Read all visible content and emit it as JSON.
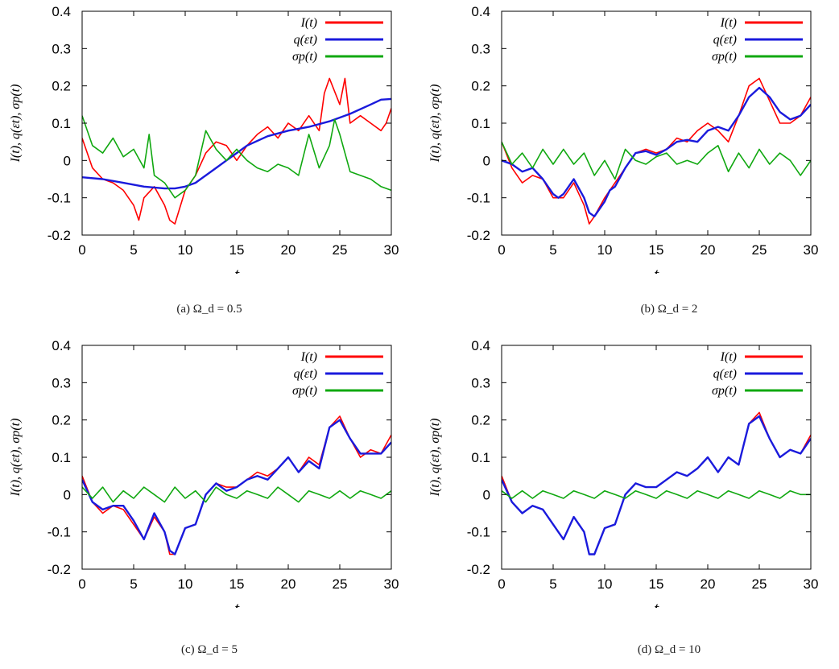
{
  "figure": {
    "panels": [
      {
        "caption": "(a) Ω_d = 0.5"
      },
      {
        "caption": "(b) Ω_d = 2"
      },
      {
        "caption": "(c) Ω_d = 5"
      },
      {
        "caption": "(d) Ω_d = 10"
      }
    ]
  },
  "colors": {
    "I": "#ff0000",
    "q": "#1a1adc",
    "sigma_p": "#10a810"
  },
  "chart_data": [
    {
      "type": "line",
      "caption": "(a) Ω_d = 0.5",
      "xlabel": "t",
      "ylabel": "I(t), q(εt), σp(t)",
      "xlim": [
        0,
        30
      ],
      "ylim": [
        -0.2,
        0.4
      ],
      "xticks": [
        0,
        5,
        10,
        15,
        20,
        25,
        30
      ],
      "yticks": [
        -0.2,
        -0.1,
        0,
        0.1,
        0.2,
        0.3,
        0.4
      ],
      "yticklabels": [
        "-0.2",
        "-0.1",
        "0",
        "0.1",
        "0.2",
        "0.3",
        "0.4"
      ],
      "legend_position": "top-right",
      "series": [
        {
          "name": "I(t)",
          "color": "#ff0000",
          "x": [
            0,
            1,
            2,
            3,
            4,
            5,
            5.5,
            6,
            7,
            8,
            8.5,
            9,
            10,
            11,
            12,
            13,
            14,
            15,
            16,
            17,
            18,
            19,
            20,
            21,
            22,
            23,
            23.5,
            24,
            25,
            25.5,
            26,
            27,
            28,
            29,
            29.5,
            30
          ],
          "y": [
            0.06,
            -0.02,
            -0.05,
            -0.06,
            -0.08,
            -0.12,
            -0.16,
            -0.1,
            -0.07,
            -0.12,
            -0.16,
            -0.17,
            -0.08,
            -0.04,
            0.02,
            0.05,
            0.04,
            0.0,
            0.04,
            0.07,
            0.09,
            0.06,
            0.1,
            0.08,
            0.12,
            0.08,
            0.18,
            0.22,
            0.15,
            0.22,
            0.1,
            0.12,
            0.1,
            0.08,
            0.1,
            0.14
          ]
        },
        {
          "name": "q(εt)",
          "color": "#1a1adc",
          "x": [
            0,
            2,
            4,
            6,
            8,
            9,
            10,
            11,
            12,
            13,
            14,
            15,
            16,
            18,
            20,
            22,
            24,
            26,
            28,
            29,
            30
          ],
          "y": [
            -0.045,
            -0.05,
            -0.06,
            -0.07,
            -0.075,
            -0.075,
            -0.07,
            -0.06,
            -0.04,
            -0.02,
            0.0,
            0.02,
            0.04,
            0.065,
            0.08,
            0.09,
            0.105,
            0.125,
            0.15,
            0.163,
            0.165
          ]
        },
        {
          "name": "σp(t)",
          "color": "#10a810",
          "x": [
            0,
            1,
            2,
            3,
            4,
            5,
            6,
            6.5,
            7,
            8,
            9,
            10,
            11,
            12,
            13,
            14,
            15,
            16,
            17,
            18,
            19,
            20,
            21,
            22,
            23,
            24,
            24.5,
            25,
            26,
            27,
            28,
            29,
            30
          ],
          "y": [
            0.12,
            0.04,
            0.02,
            0.06,
            0.01,
            0.03,
            -0.02,
            0.07,
            -0.04,
            -0.06,
            -0.1,
            -0.08,
            -0.04,
            0.08,
            0.03,
            0.0,
            0.03,
            0.0,
            -0.02,
            -0.03,
            -0.01,
            -0.02,
            -0.04,
            0.07,
            -0.02,
            0.04,
            0.11,
            0.07,
            -0.03,
            -0.04,
            -0.05,
            -0.07,
            -0.08
          ]
        }
      ]
    },
    {
      "type": "line",
      "caption": "(b) Ω_d = 2",
      "xlabel": "t",
      "ylabel": "I(t), q(εt), σp(t)",
      "xlim": [
        0,
        30
      ],
      "ylim": [
        -0.2,
        0.4
      ],
      "xticks": [
        0,
        5,
        10,
        15,
        20,
        25,
        30
      ],
      "yticks": [
        -0.2,
        -0.1,
        0,
        0.1,
        0.2,
        0.3,
        0.4
      ],
      "yticklabels": [
        "-0.2",
        "-0.1",
        "0",
        "0.1",
        "0.2",
        "0.3",
        "0.4"
      ],
      "legend_position": "top-right",
      "series": [
        {
          "name": "I(t)",
          "color": "#ff0000",
          "x": [
            0,
            1,
            2,
            3,
            4,
            5,
            6,
            7,
            8,
            8.5,
            9,
            10,
            11,
            12,
            13,
            14,
            15,
            16,
            17,
            18,
            19,
            20,
            21,
            22,
            23,
            24,
            25,
            26,
            27,
            28,
            29,
            30
          ],
          "y": [
            0.05,
            -0.02,
            -0.06,
            -0.04,
            -0.05,
            -0.1,
            -0.1,
            -0.06,
            -0.12,
            -0.17,
            -0.15,
            -0.1,
            -0.06,
            -0.02,
            0.02,
            0.03,
            0.02,
            0.03,
            0.06,
            0.05,
            0.08,
            0.1,
            0.08,
            0.05,
            0.12,
            0.2,
            0.22,
            0.16,
            0.1,
            0.1,
            0.12,
            0.17
          ]
        },
        {
          "name": "q(εt)",
          "color": "#1a1adc",
          "x": [
            0,
            1,
            2,
            3,
            4,
            5,
            5.5,
            6,
            7,
            8,
            8.5,
            9,
            10,
            10.5,
            11,
            12,
            13,
            14,
            15,
            16,
            17,
            18,
            19,
            20,
            21,
            22,
            23,
            24,
            25,
            26,
            27,
            28,
            29,
            30
          ],
          "y": [
            0.0,
            -0.01,
            -0.03,
            -0.02,
            -0.05,
            -0.09,
            -0.1,
            -0.09,
            -0.05,
            -0.1,
            -0.14,
            -0.15,
            -0.11,
            -0.08,
            -0.07,
            -0.02,
            0.02,
            0.025,
            0.015,
            0.03,
            0.05,
            0.055,
            0.05,
            0.08,
            0.09,
            0.08,
            0.12,
            0.17,
            0.195,
            0.17,
            0.13,
            0.11,
            0.12,
            0.15
          ]
        },
        {
          "name": "σp(t)",
          "color": "#10a810",
          "x": [
            0,
            1,
            2,
            3,
            4,
            5,
            6,
            7,
            8,
            9,
            10,
            11,
            12,
            13,
            14,
            15,
            16,
            17,
            18,
            19,
            20,
            21,
            22,
            23,
            24,
            25,
            26,
            27,
            28,
            29,
            30
          ],
          "y": [
            0.05,
            -0.01,
            0.02,
            -0.02,
            0.03,
            -0.01,
            0.03,
            -0.01,
            0.02,
            -0.04,
            0.0,
            -0.05,
            0.03,
            0.0,
            -0.01,
            0.01,
            0.02,
            -0.01,
            0.0,
            -0.01,
            0.02,
            0.04,
            -0.03,
            0.02,
            -0.02,
            0.03,
            -0.01,
            0.02,
            0.0,
            -0.04,
            0.0
          ]
        }
      ]
    },
    {
      "type": "line",
      "caption": "(c) Ω_d = 5",
      "xlabel": "t",
      "ylabel": "I(t), q(εt), σp(t)",
      "xlim": [
        0,
        30
      ],
      "ylim": [
        -0.2,
        0.4
      ],
      "xticks": [
        0,
        5,
        10,
        15,
        20,
        25,
        30
      ],
      "yticks": [
        -0.2,
        -0.1,
        0,
        0.1,
        0.2,
        0.3,
        0.4
      ],
      "yticklabels": [
        "-0.2",
        "-0.1",
        "0",
        "0.1",
        "0.2",
        "0.3",
        "0.4"
      ],
      "legend_position": "top-right",
      "series": [
        {
          "name": "I(t)",
          "color": "#ff0000",
          "x": [
            0,
            1,
            2,
            3,
            4,
            5,
            6,
            7,
            8,
            8.5,
            9,
            10,
            11,
            12,
            13,
            14,
            15,
            16,
            17,
            18,
            19,
            20,
            21,
            22,
            23,
            24,
            25,
            26,
            27,
            28,
            29,
            30
          ],
          "y": [
            0.05,
            -0.02,
            -0.05,
            -0.03,
            -0.04,
            -0.08,
            -0.12,
            -0.06,
            -0.1,
            -0.16,
            -0.16,
            -0.09,
            -0.08,
            0.0,
            0.03,
            0.02,
            0.02,
            0.04,
            0.06,
            0.05,
            0.07,
            0.1,
            0.06,
            0.1,
            0.08,
            0.18,
            0.21,
            0.15,
            0.1,
            0.12,
            0.11,
            0.16
          ]
        },
        {
          "name": "q(εt)",
          "color": "#1a1adc",
          "x": [
            0,
            1,
            2,
            3,
            4,
            5,
            6,
            7,
            8,
            8.5,
            9,
            10,
            11,
            12,
            13,
            14,
            15,
            16,
            17,
            18,
            19,
            20,
            21,
            22,
            23,
            24,
            25,
            26,
            27,
            28,
            29,
            30
          ],
          "y": [
            0.04,
            -0.02,
            -0.04,
            -0.03,
            -0.03,
            -0.07,
            -0.12,
            -0.05,
            -0.1,
            -0.15,
            -0.16,
            -0.09,
            -0.08,
            0.0,
            0.03,
            0.01,
            0.02,
            0.04,
            0.05,
            0.04,
            0.07,
            0.1,
            0.06,
            0.09,
            0.07,
            0.18,
            0.2,
            0.15,
            0.11,
            0.11,
            0.11,
            0.14
          ]
        },
        {
          "name": "σp(t)",
          "color": "#10a810",
          "x": [
            0,
            1,
            2,
            3,
            4,
            5,
            6,
            7,
            8,
            9,
            10,
            11,
            12,
            13,
            14,
            15,
            16,
            17,
            18,
            19,
            20,
            21,
            22,
            23,
            24,
            25,
            26,
            27,
            28,
            29,
            30
          ],
          "y": [
            0.02,
            -0.01,
            0.02,
            -0.02,
            0.01,
            -0.01,
            0.02,
            0.0,
            -0.02,
            0.02,
            -0.01,
            0.01,
            -0.02,
            0.02,
            0.0,
            -0.01,
            0.01,
            0.0,
            -0.01,
            0.02,
            0.0,
            -0.02,
            0.01,
            0.0,
            -0.01,
            0.01,
            -0.01,
            0.01,
            0.0,
            -0.01,
            0.01
          ]
        }
      ]
    },
    {
      "type": "line",
      "caption": "(d) Ω_d = 10",
      "xlabel": "t",
      "ylabel": "I(t), q(εt), σp(t)",
      "xlim": [
        0,
        30
      ],
      "ylim": [
        -0.2,
        0.4
      ],
      "xticks": [
        0,
        5,
        10,
        15,
        20,
        25,
        30
      ],
      "yticks": [
        -0.2,
        -0.1,
        0,
        0.1,
        0.2,
        0.3,
        0.4
      ],
      "yticklabels": [
        "-0.2",
        "-0.1",
        "0",
        "0.1",
        "0.2",
        "0.3",
        "0.4"
      ],
      "legend_position": "top-right",
      "series": [
        {
          "name": "I(t)",
          "color": "#ff0000",
          "x": [
            0,
            1,
            2,
            3,
            4,
            5,
            6,
            7,
            8,
            8.5,
            9,
            10,
            11,
            12,
            13,
            14,
            15,
            16,
            17,
            18,
            19,
            20,
            21,
            22,
            23,
            24,
            25,
            26,
            27,
            28,
            29,
            30
          ],
          "y": [
            0.05,
            -0.02,
            -0.05,
            -0.03,
            -0.04,
            -0.08,
            -0.12,
            -0.06,
            -0.1,
            -0.16,
            -0.16,
            -0.09,
            -0.08,
            0.0,
            0.03,
            0.02,
            0.02,
            0.04,
            0.06,
            0.05,
            0.07,
            0.1,
            0.06,
            0.1,
            0.08,
            0.19,
            0.22,
            0.15,
            0.1,
            0.12,
            0.11,
            0.16
          ]
        },
        {
          "name": "q(εt)",
          "color": "#1a1adc",
          "x": [
            0,
            1,
            2,
            3,
            4,
            5,
            6,
            7,
            8,
            8.5,
            9,
            10,
            11,
            12,
            13,
            14,
            15,
            16,
            17,
            18,
            19,
            20,
            21,
            22,
            23,
            24,
            25,
            26,
            27,
            28,
            29,
            30
          ],
          "y": [
            0.04,
            -0.02,
            -0.05,
            -0.03,
            -0.04,
            -0.08,
            -0.12,
            -0.06,
            -0.1,
            -0.16,
            -0.16,
            -0.09,
            -0.08,
            0.0,
            0.03,
            0.02,
            0.02,
            0.04,
            0.06,
            0.05,
            0.07,
            0.1,
            0.06,
            0.1,
            0.08,
            0.19,
            0.21,
            0.15,
            0.1,
            0.12,
            0.11,
            0.15
          ]
        },
        {
          "name": "σp(t)",
          "color": "#10a810",
          "x": [
            0,
            1,
            2,
            3,
            4,
            5,
            6,
            7,
            8,
            9,
            10,
            11,
            12,
            13,
            14,
            15,
            16,
            17,
            18,
            19,
            20,
            21,
            22,
            23,
            24,
            25,
            26,
            27,
            28,
            29,
            30
          ],
          "y": [
            0.01,
            -0.01,
            0.01,
            -0.01,
            0.01,
            0.0,
            -0.01,
            0.01,
            0.0,
            -0.01,
            0.01,
            0.0,
            -0.01,
            0.01,
            0.0,
            -0.01,
            0.01,
            0.0,
            -0.01,
            0.01,
            0.0,
            -0.01,
            0.01,
            0.0,
            -0.01,
            0.01,
            0.0,
            -0.01,
            0.01,
            0.0,
            0.0
          ]
        }
      ]
    }
  ]
}
